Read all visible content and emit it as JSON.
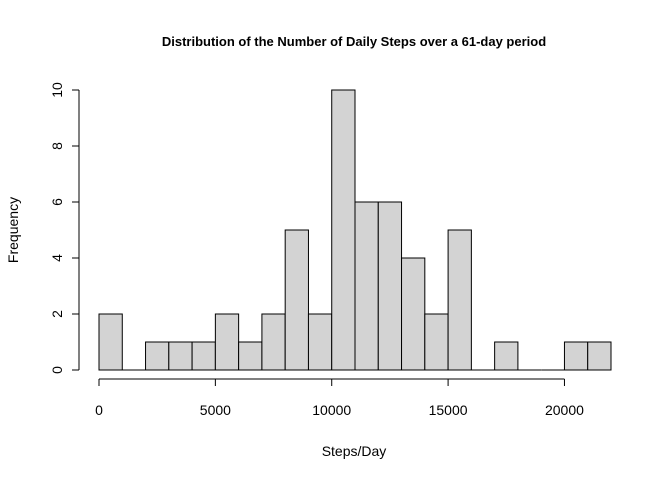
{
  "chart_data": {
    "type": "bar",
    "title": "Distribution of the Number of Daily Steps over a 61-day period",
    "xlabel": "Steps/Day",
    "ylabel": "Frequency",
    "bin_width": 1000,
    "bins": [
      {
        "start": 0,
        "end": 1000,
        "count": 2
      },
      {
        "start": 1000,
        "end": 2000,
        "count": 0
      },
      {
        "start": 2000,
        "end": 3000,
        "count": 1
      },
      {
        "start": 3000,
        "end": 4000,
        "count": 1
      },
      {
        "start": 4000,
        "end": 5000,
        "count": 1
      },
      {
        "start": 5000,
        "end": 6000,
        "count": 2
      },
      {
        "start": 6000,
        "end": 7000,
        "count": 1
      },
      {
        "start": 7000,
        "end": 8000,
        "count": 2
      },
      {
        "start": 8000,
        "end": 9000,
        "count": 5
      },
      {
        "start": 9000,
        "end": 10000,
        "count": 2
      },
      {
        "start": 10000,
        "end": 11000,
        "count": 10
      },
      {
        "start": 11000,
        "end": 12000,
        "count": 6
      },
      {
        "start": 12000,
        "end": 13000,
        "count": 6
      },
      {
        "start": 13000,
        "end": 14000,
        "count": 4
      },
      {
        "start": 14000,
        "end": 15000,
        "count": 2
      },
      {
        "start": 15000,
        "end": 16000,
        "count": 5
      },
      {
        "start": 16000,
        "end": 17000,
        "count": 0
      },
      {
        "start": 17000,
        "end": 18000,
        "count": 1
      },
      {
        "start": 18000,
        "end": 19000,
        "count": 0
      },
      {
        "start": 19000,
        "end": 20000,
        "count": 0
      },
      {
        "start": 20000,
        "end": 21000,
        "count": 1
      },
      {
        "start": 21000,
        "end": 22000,
        "count": 1
      }
    ],
    "xlim": [
      0,
      22000
    ],
    "ylim": [
      0,
      10
    ],
    "x_ticks": [
      {
        "value": 0,
        "label": "0"
      },
      {
        "value": 5000,
        "label": "5000"
      },
      {
        "value": 10000,
        "label": "10000"
      },
      {
        "value": 15000,
        "label": "15000"
      },
      {
        "value": 20000,
        "label": "20000"
      }
    ],
    "y_ticks": [
      {
        "value": 0,
        "label": "0"
      },
      {
        "value": 2,
        "label": "2"
      },
      {
        "value": 4,
        "label": "4"
      },
      {
        "value": 6,
        "label": "6"
      },
      {
        "value": 8,
        "label": "8"
      },
      {
        "value": 10,
        "label": "10"
      }
    ],
    "grid": false,
    "colors": {
      "bar_fill": "#d3d3d3",
      "bar_stroke": "#000000"
    }
  }
}
